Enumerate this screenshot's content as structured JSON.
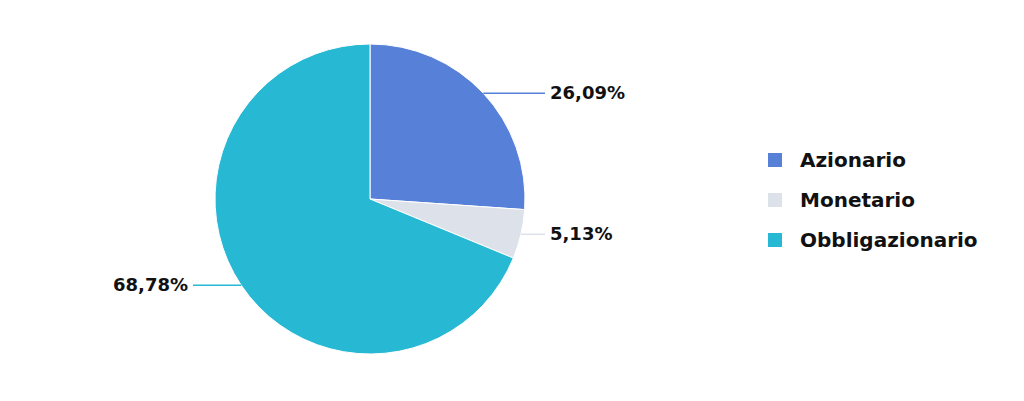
{
  "chart_data": {
    "type": "pie",
    "categories": [
      "Azionario",
      "Monetario",
      "Obbligazionario"
    ],
    "values": [
      26.09,
      5.13,
      68.78
    ],
    "value_labels": [
      "26,09%",
      "5,13%",
      "68,78%"
    ],
    "colors": [
      "#5780d9",
      "#dde2ea",
      "#27b9d3"
    ],
    "data_labels": true,
    "legend": "right"
  }
}
